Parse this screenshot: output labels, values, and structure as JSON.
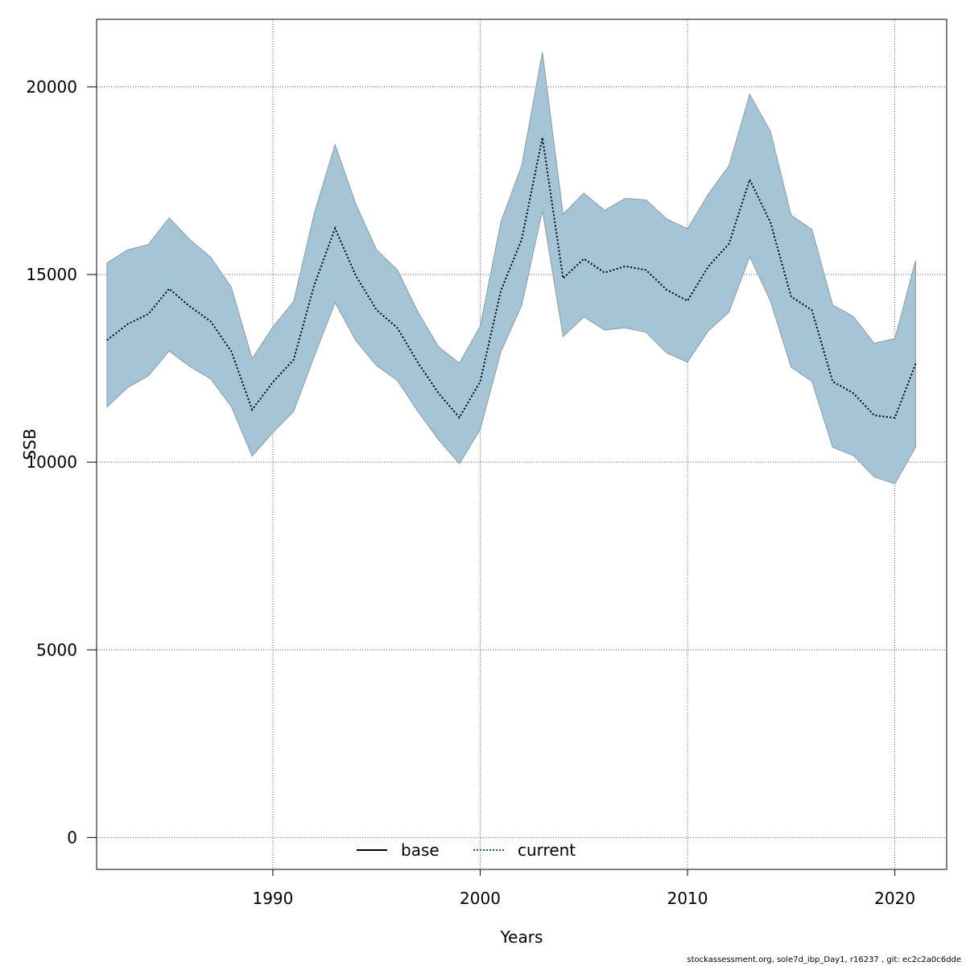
{
  "footer_text": "stockassessment.org, sole7d_ibp_Day1, r16237 , git: ec2c2a0c6dde",
  "chart_data": {
    "type": "area",
    "title": "",
    "xlabel": "Years",
    "ylabel": "SSB",
    "xlim": [
      1981.5,
      2022.5
    ],
    "ylim": [
      -850,
      21800
    ],
    "x_ticks": [
      1990,
      2000,
      2010,
      2020
    ],
    "y_ticks": [
      0,
      5000,
      10000,
      15000,
      20000
    ],
    "grid": true,
    "legend_position": "bottom",
    "legend": [
      {
        "label": "base",
        "style": "solid",
        "color": "#000000"
      },
      {
        "label": "current",
        "style": "dotted",
        "color": "#1f4e79"
      }
    ],
    "colors": {
      "band_fill": "#a5c4d6",
      "band_edge": "#8a9ba8",
      "line": "#000000",
      "grid": "#555555"
    },
    "x": [
      1982,
      1983,
      1984,
      1985,
      1986,
      1987,
      1988,
      1989,
      1990,
      1991,
      1992,
      1993,
      1994,
      1995,
      1996,
      1997,
      1998,
      1999,
      2000,
      2001,
      2002,
      2003,
      2004,
      2005,
      2006,
      2007,
      2008,
      2009,
      2010,
      2011,
      2012,
      2013,
      2014,
      2015,
      2016,
      2017,
      2018,
      2019,
      2020,
      2021
    ],
    "series": [
      {
        "name": "current",
        "values": [
          13250,
          13680,
          13950,
          14620,
          14150,
          13750,
          12950,
          11400,
          12130,
          12730,
          14720,
          16230,
          14970,
          14060,
          13580,
          12650,
          11830,
          11190,
          12150,
          14570,
          15930,
          18650,
          14900,
          15420,
          15050,
          15220,
          15120,
          14590,
          14300,
          15210,
          15820,
          17530,
          16390,
          14410,
          14050,
          12150,
          11840,
          11250,
          11180,
          12620
        ]
      }
    ],
    "band": {
      "upper": [
        15310,
        15660,
        15800,
        16510,
        15930,
        15460,
        14660,
        12760,
        13600,
        14280,
        16630,
        18460,
        16880,
        15660,
        15130,
        14000,
        13070,
        12640,
        13620,
        16400,
        17900,
        20920,
        16610,
        17170,
        16710,
        17030,
        16990,
        16480,
        16220,
        17140,
        17900,
        19800,
        18810,
        16580,
        16200,
        14190,
        13880,
        13170,
        13290,
        15370
      ],
      "lower": [
        11470,
        11990,
        12300,
        12960,
        12550,
        12220,
        11480,
        10160,
        10790,
        11350,
        12820,
        14250,
        13240,
        12570,
        12180,
        11350,
        10590,
        9960,
        10870,
        12940,
        14180,
        16700,
        13350,
        13870,
        13520,
        13580,
        13460,
        12910,
        12670,
        13500,
        14000,
        15480,
        14290,
        12530,
        12150,
        10400,
        10180,
        9610,
        9420,
        10400
      ]
    }
  }
}
